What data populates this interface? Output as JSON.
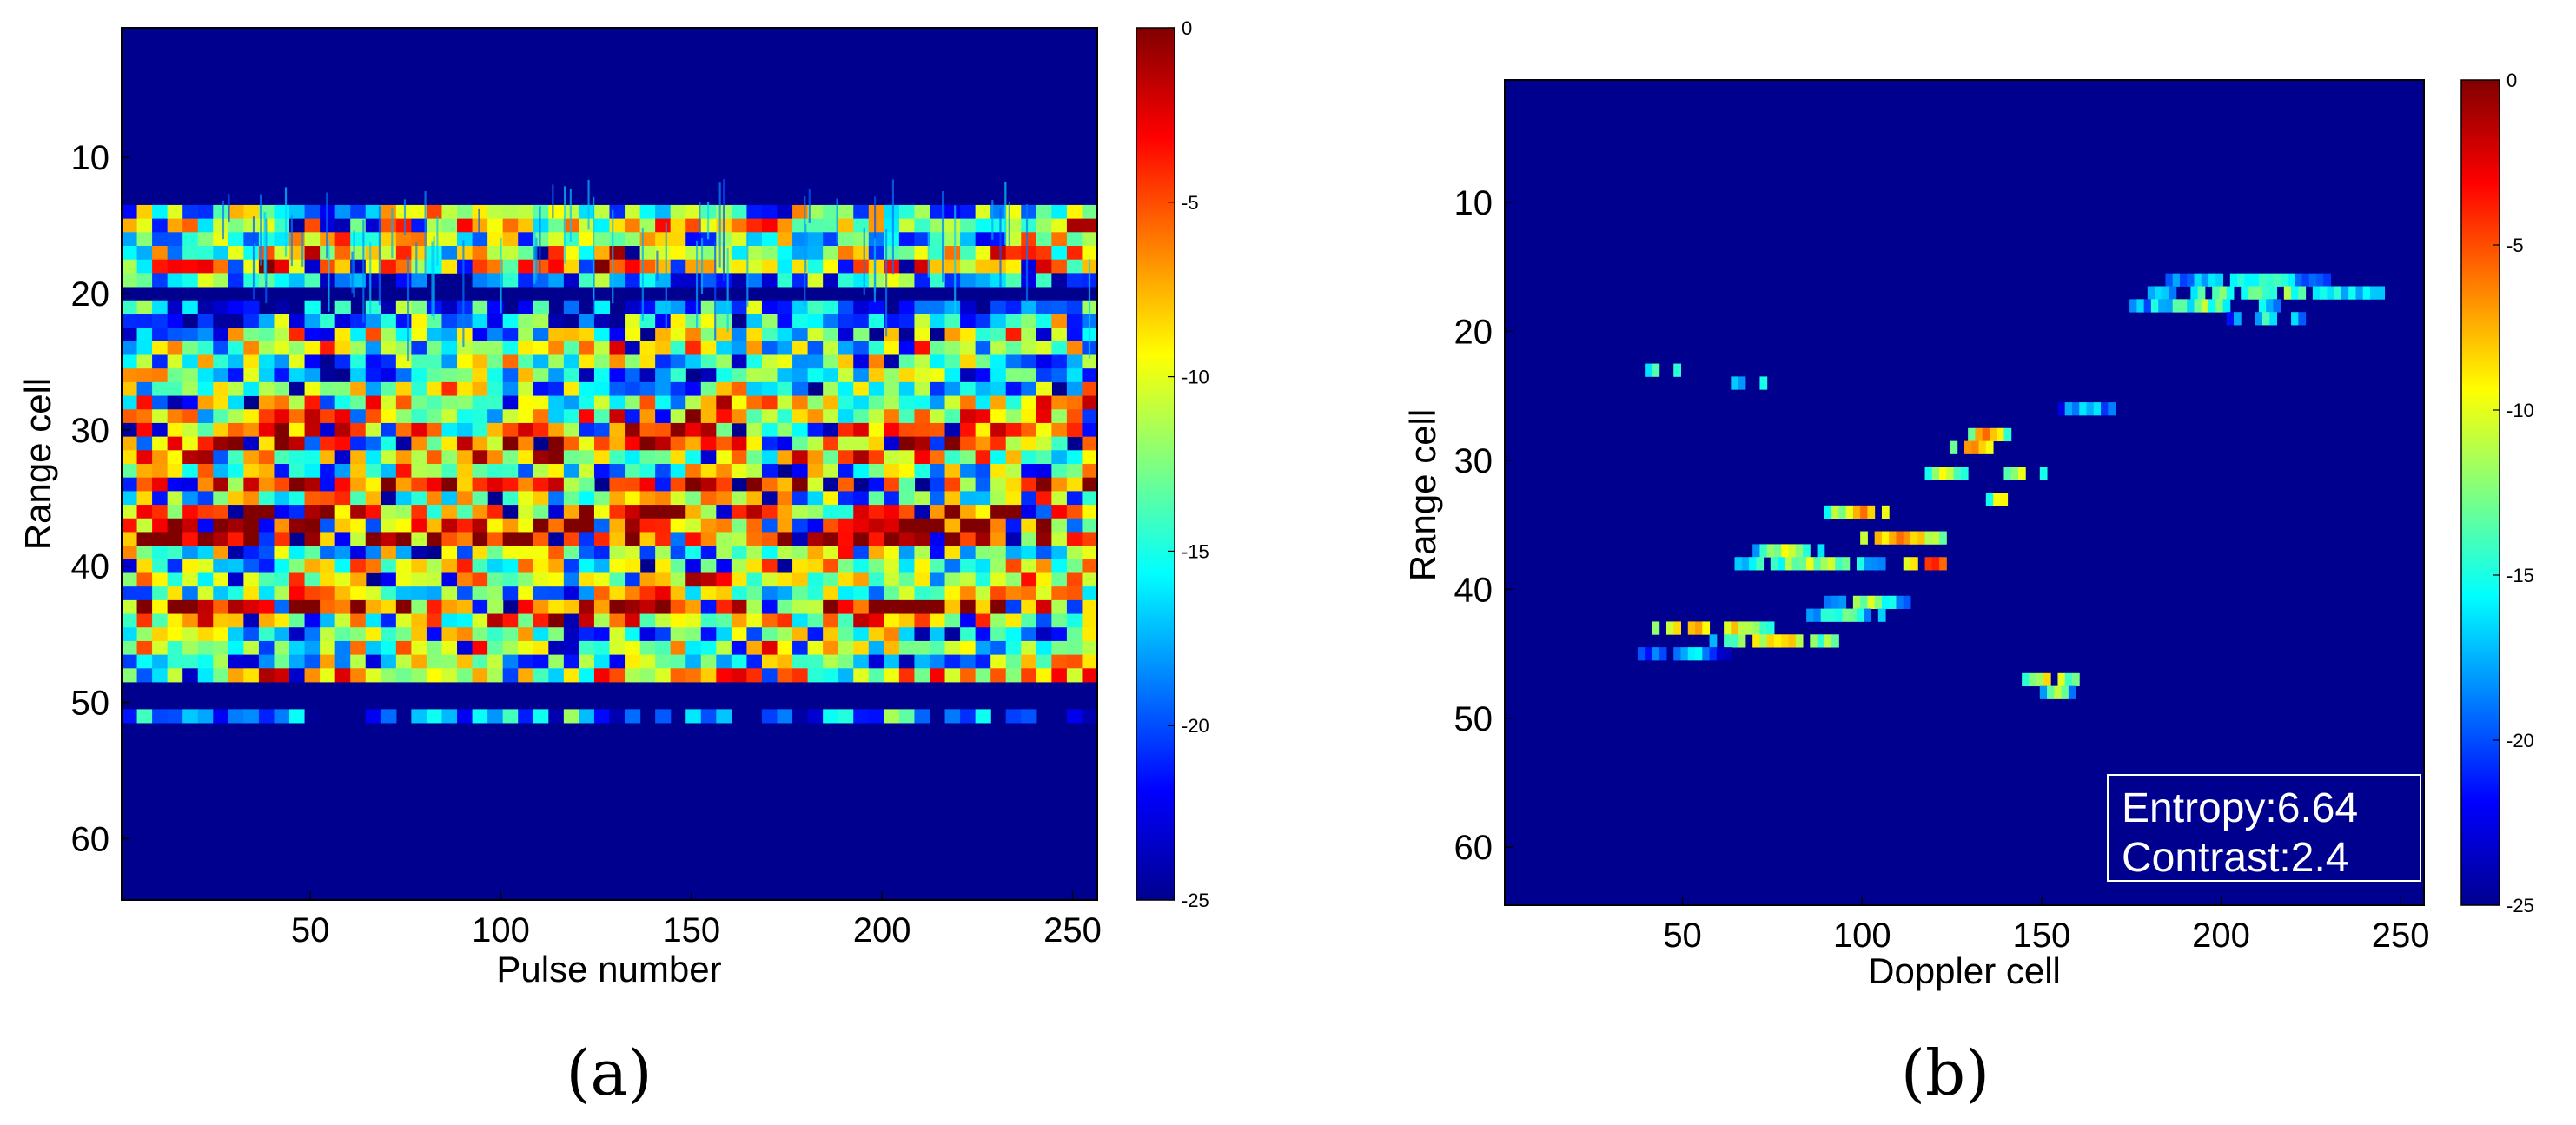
{
  "chart_data": [
    {
      "type": "heatmap",
      "panel_label": "(a)",
      "xlabel": "Pulse number",
      "ylabel": "Range cell",
      "xlim": [
        1,
        256
      ],
      "ylim": [
        64,
        1
      ],
      "x_ticks": [
        50,
        100,
        150,
        200,
        250
      ],
      "y_ticks": [
        10,
        20,
        30,
        40,
        50,
        60
      ],
      "colormap": "jet",
      "clim": [
        -25,
        0
      ],
      "colorbar_ticks": [
        0,
        -5,
        -10,
        -15,
        -20,
        -25
      ],
      "grid": false,
      "rows": [
        {
          "range_cell": 14,
          "level_db": -13
        },
        {
          "range_cell": 15,
          "level_db": -9
        },
        {
          "range_cell": 16,
          "level_db": -12
        },
        {
          "range_cell": 17,
          "level_db": -10
        },
        {
          "range_cell": 18,
          "level_db": -8
        },
        {
          "range_cell": 19,
          "level_db": -18
        },
        {
          "range_cell": 21,
          "level_db": -19
        },
        {
          "range_cell": 22,
          "level_db": -15
        },
        {
          "range_cell": 23,
          "level_db": -13
        },
        {
          "range_cell": 24,
          "level_db": -11
        },
        {
          "range_cell": 25,
          "level_db": -14
        },
        {
          "range_cell": 26,
          "level_db": -16
        },
        {
          "range_cell": 27,
          "level_db": -13
        },
        {
          "range_cell": 28,
          "level_db": -10
        },
        {
          "range_cell": 29,
          "level_db": -9
        },
        {
          "range_cell": 30,
          "level_db": -7
        },
        {
          "range_cell": 31,
          "level_db": -6
        },
        {
          "range_cell": 32,
          "level_db": -9
        },
        {
          "range_cell": 33,
          "level_db": -11
        },
        {
          "range_cell": 34,
          "level_db": -5
        },
        {
          "range_cell": 35,
          "level_db": -12
        },
        {
          "range_cell": 36,
          "level_db": -6
        },
        {
          "range_cell": 37,
          "level_db": -4
        },
        {
          "range_cell": 38,
          "level_db": -3
        },
        {
          "range_cell": 39,
          "level_db": -13
        },
        {
          "range_cell": 40,
          "level_db": -11
        },
        {
          "range_cell": 41,
          "level_db": -10
        },
        {
          "range_cell": 42,
          "level_db": -12
        },
        {
          "range_cell": 43,
          "level_db": -4
        },
        {
          "range_cell": 44,
          "level_db": -9
        },
        {
          "range_cell": 45,
          "level_db": -14
        },
        {
          "range_cell": 46,
          "level_db": -12
        },
        {
          "range_cell": 47,
          "level_db": -15
        },
        {
          "range_cell": 48,
          "level_db": -9
        },
        {
          "range_cell": 51,
          "level_db": -20
        }
      ]
    },
    {
      "type": "heatmap",
      "panel_label": "(b)",
      "xlabel": "Doppler cell",
      "ylabel": "Range cell",
      "xlim": [
        1,
        256
      ],
      "ylim": [
        64,
        1
      ],
      "x_ticks": [
        50,
        100,
        150,
        200,
        250
      ],
      "y_ticks": [
        10,
        20,
        30,
        40,
        50,
        60
      ],
      "colormap": "jet",
      "clim": [
        -25,
        0
      ],
      "colorbar_ticks": [
        0,
        -5,
        -10,
        -15,
        -20,
        -25
      ],
      "grid": false,
      "annotation": {
        "entropy": "Entropy:6.64",
        "contrast": "Contrast:2.4",
        "placement": "bottom-right"
      },
      "blobs": [
        {
          "range_cell": 16,
          "doppler_from": 185,
          "doppler_to": 230,
          "level_db": -14
        },
        {
          "range_cell": 17,
          "doppler_from": 180,
          "doppler_to": 245,
          "level_db": -12
        },
        {
          "range_cell": 18,
          "doppler_from": 175,
          "doppler_to": 215,
          "level_db": -13
        },
        {
          "range_cell": 19,
          "doppler_from": 200,
          "doppler_to": 225,
          "level_db": -15
        },
        {
          "range_cell": 23,
          "doppler_from": 40,
          "doppler_to": 48,
          "level_db": -11
        },
        {
          "range_cell": 24,
          "doppler_from": 62,
          "doppler_to": 75,
          "level_db": -14
        },
        {
          "range_cell": 26,
          "doppler_from": 155,
          "doppler_to": 170,
          "level_db": -15
        },
        {
          "range_cell": 28,
          "doppler_from": 128,
          "doppler_to": 140,
          "level_db": -7
        },
        {
          "range_cell": 29,
          "doppler_from": 125,
          "doppler_to": 135,
          "level_db": -5
        },
        {
          "range_cell": 31,
          "doppler_from": 118,
          "doppler_to": 128,
          "level_db": -8
        },
        {
          "range_cell": 31,
          "doppler_from": 140,
          "doppler_to": 150,
          "level_db": -9
        },
        {
          "range_cell": 33,
          "doppler_from": 135,
          "doppler_to": 142,
          "level_db": -7
        },
        {
          "range_cell": 34,
          "doppler_from": 90,
          "doppler_to": 110,
          "level_db": -8
        },
        {
          "range_cell": 36,
          "doppler_from": 100,
          "doppler_to": 122,
          "level_db": -6
        },
        {
          "range_cell": 37,
          "doppler_from": 70,
          "doppler_to": 88,
          "level_db": -10
        },
        {
          "range_cell": 38,
          "doppler_from": 65,
          "doppler_to": 105,
          "level_db": -11
        },
        {
          "range_cell": 38,
          "doppler_from": 112,
          "doppler_to": 125,
          "level_db": -4
        },
        {
          "range_cell": 41,
          "doppler_from": 90,
          "doppler_to": 112,
          "level_db": -12
        },
        {
          "range_cell": 42,
          "doppler_from": 85,
          "doppler_to": 105,
          "level_db": -13
        },
        {
          "range_cell": 43,
          "doppler_from": 40,
          "doppler_to": 75,
          "level_db": -7
        },
        {
          "range_cell": 44,
          "doppler_from": 58,
          "doppler_to": 95,
          "level_db": -9
        },
        {
          "range_cell": 45,
          "doppler_from": 38,
          "doppler_to": 62,
          "level_db": -16
        },
        {
          "range_cell": 47,
          "doppler_from": 145,
          "doppler_to": 160,
          "level_db": -9
        },
        {
          "range_cell": 48,
          "doppler_from": 150,
          "doppler_to": 158,
          "level_db": -12
        }
      ]
    }
  ]
}
